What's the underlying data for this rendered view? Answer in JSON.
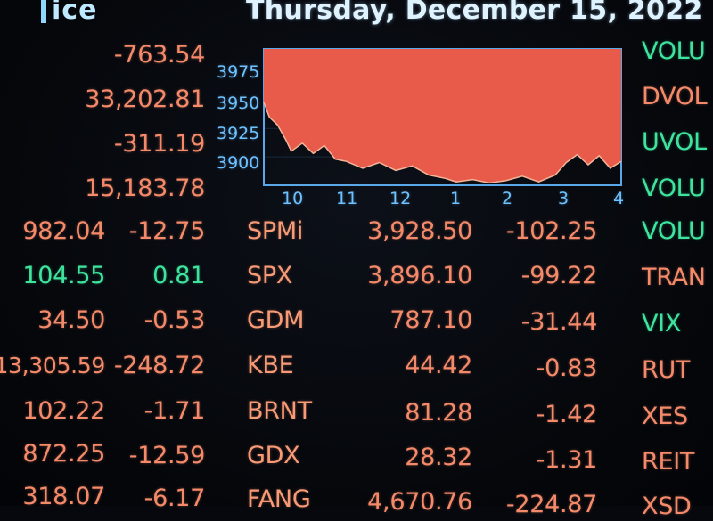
{
  "header": {
    "logo_text": "ice",
    "date": "Thursday, December 15, 2022"
  },
  "left_stats": [
    "-763.54",
    "33,202.81",
    "-311.19",
    "15,183.78"
  ],
  "chart_data": {
    "type": "area",
    "title": "",
    "xlabel": "",
    "ylabel": "",
    "x_ticks": [
      "10",
      "11",
      "12",
      "1",
      "2",
      "3",
      "4"
    ],
    "y_ticks": [
      "3975",
      "3950",
      "3925",
      "3900"
    ],
    "ylim": [
      3875,
      3995
    ],
    "fill_color": "#e85a4a",
    "x": [
      9.5,
      9.6,
      9.75,
      9.9,
      10.0,
      10.2,
      10.4,
      10.6,
      10.8,
      11.0,
      11.3,
      11.6,
      11.9,
      12.2,
      12.5,
      12.8,
      13.0,
      13.3,
      13.6,
      13.9,
      14.2,
      14.5,
      14.8,
      15.0,
      15.2,
      15.4,
      15.6,
      15.8,
      16.0
    ],
    "values": [
      3948,
      3935,
      3928,
      3915,
      3905,
      3912,
      3903,
      3910,
      3898,
      3896,
      3890,
      3895,
      3888,
      3892,
      3884,
      3881,
      3878,
      3880,
      3877,
      3879,
      3883,
      3878,
      3884,
      3895,
      3902,
      3893,
      3901,
      3890,
      3896
    ]
  },
  "rows": [
    {
      "left_price": "982.04",
      "left_change": "-12.75",
      "symbol": "SPMi",
      "price": "3,928.50",
      "change": "-102.25",
      "right_label": "VOLU",
      "left_dir": "neg",
      "right_dir": "green"
    },
    {
      "left_price": "104.55",
      "left_change": "0.81",
      "symbol": "SPX",
      "price": "3,896.10",
      "change": "-99.22",
      "right_label": "TRAN",
      "left_dir": "pos",
      "right_dir": "red"
    },
    {
      "left_price": "34.50",
      "left_change": "-0.53",
      "symbol": "GDM",
      "price": "787.10",
      "change": "-31.44",
      "right_label": "VIX",
      "left_dir": "neg",
      "right_dir": "green"
    },
    {
      "left_price": "13,305.59",
      "left_change": "-248.72",
      "symbol": "KBE",
      "price": "44.42",
      "change": "-0.83",
      "right_label": "RUT",
      "left_dir": "neg",
      "right_dir": "red"
    },
    {
      "left_price": "102.22",
      "left_change": "-1.71",
      "symbol": "BRNT",
      "price": "81.28",
      "change": "-1.42",
      "right_label": "XES",
      "left_dir": "neg",
      "right_dir": "red"
    },
    {
      "left_price": "872.25",
      "left_change": "-12.59",
      "symbol": "GDX",
      "price": "28.32",
      "change": "-1.31",
      "right_label": "REIT",
      "left_dir": "neg",
      "right_dir": "red"
    },
    {
      "left_price": "318.07",
      "left_change": "-6.17",
      "symbol": "FANG",
      "price": "4,670.76",
      "change": "-224.87",
      "right_label": "XSD",
      "left_dir": "neg",
      "right_dir": "red"
    }
  ],
  "top_right_labels": [
    {
      "text": "VOLU",
      "dir": "green"
    },
    {
      "text": "DVOL",
      "dir": "red"
    },
    {
      "text": "UVOL",
      "dir": "green"
    },
    {
      "text": "VOLU",
      "dir": "green"
    }
  ]
}
